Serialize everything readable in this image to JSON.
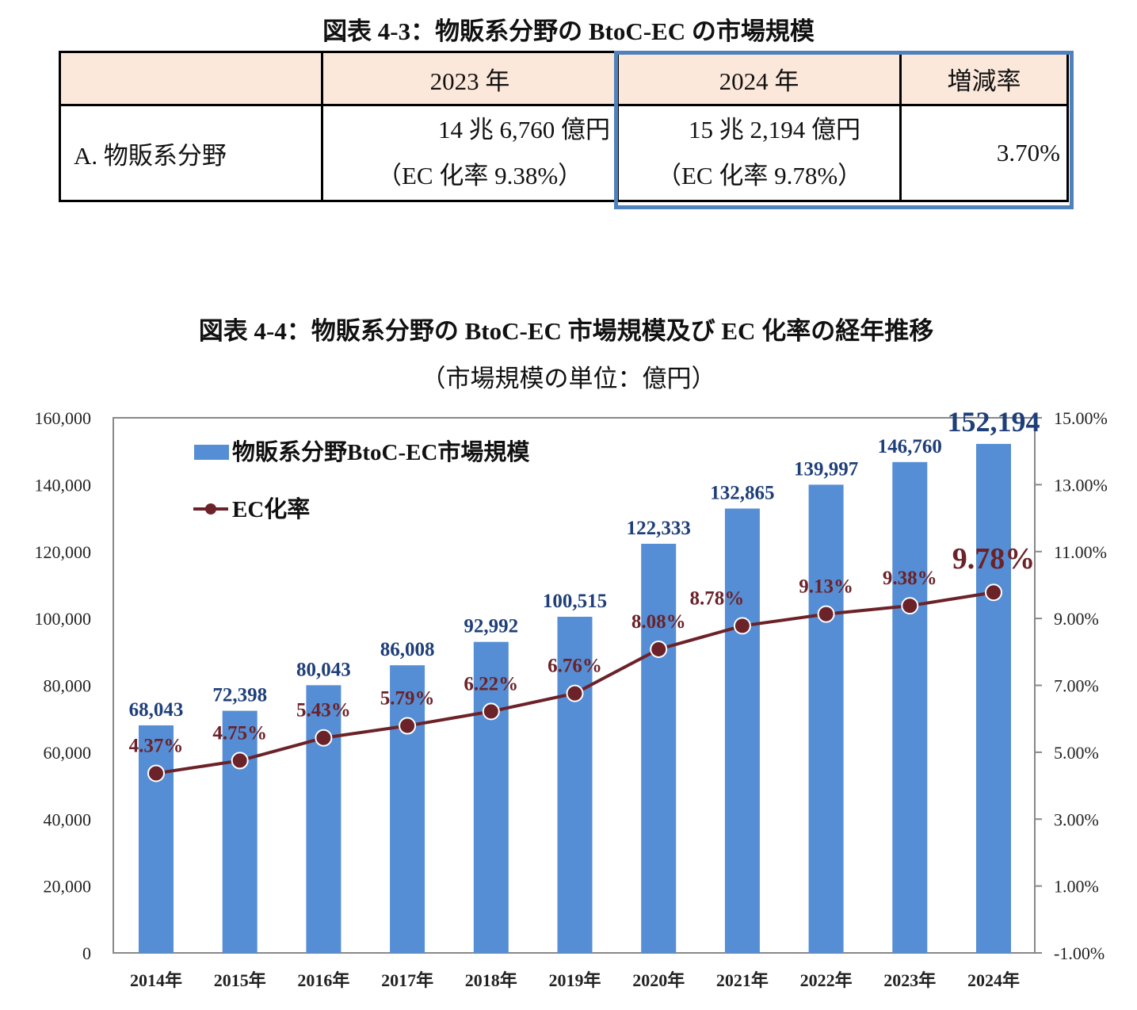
{
  "table_section": {
    "title": "図表 4-3：物販系分野の BtoC-EC の市場規模",
    "headers": [
      "",
      "2023 年",
      "2024 年",
      "増減率"
    ],
    "row": {
      "label": "A. 物販系分野",
      "y2023_value": "14 兆 6,760 億円",
      "y2023_rate": "（EC 化率 9.38%）",
      "y2024_value": "15 兆 2,194 億円",
      "y2024_rate": "（EC 化率 9.78%）",
      "change": "3.70%"
    },
    "highlight_color": "#4f81bd",
    "header_bg": "#fce8da"
  },
  "chart_data": {
    "type": "bar+line",
    "title": "図表 4-4：物販系分野の BtoC-EC 市場規模及び EC 化率の経年推移",
    "subtitle": "（市場規模の単位：億円）",
    "categories": [
      "2014年",
      "2015年",
      "2016年",
      "2017年",
      "2018年",
      "2019年",
      "2020年",
      "2021年",
      "2022年",
      "2023年",
      "2024年"
    ],
    "series": [
      {
        "name": "物販系分野BtoC-EC市場規模",
        "type": "bar",
        "axis": "left",
        "color": "#558ed5",
        "values": [
          68043,
          72398,
          80043,
          86008,
          92992,
          100515,
          122333,
          132865,
          139997,
          146760,
          152194
        ],
        "labels": [
          "68,043",
          "72,398",
          "80,043",
          "86,008",
          "92,992",
          "100,515",
          "122,333",
          "132,865",
          "139,997",
          "146,760",
          "152,194"
        ]
      },
      {
        "name": "EC化率",
        "type": "line",
        "axis": "right",
        "color": "#6b2228",
        "values": [
          4.37,
          4.75,
          5.43,
          5.79,
          6.22,
          6.76,
          8.08,
          8.78,
          9.13,
          9.38,
          9.78
        ],
        "labels": [
          "4.37%",
          "4.75%",
          "5.43%",
          "5.79%",
          "6.22%",
          "6.76%",
          "8.08%",
          "8.78%",
          "9.13%",
          "9.38%",
          "9.78%"
        ]
      }
    ],
    "y_left": {
      "range": [
        0,
        160000
      ],
      "ticks": [
        "0",
        "20,000",
        "40,000",
        "60,000",
        "80,000",
        "100,000",
        "120,000",
        "140,000",
        "160,000"
      ]
    },
    "y_right": {
      "range": [
        -1,
        15
      ],
      "ticks": [
        "-1.00%",
        "1.00%",
        "3.00%",
        "5.00%",
        "7.00%",
        "9.00%",
        "11.00%",
        "13.00%",
        "15.00%"
      ]
    },
    "legend_placement": "top-left",
    "grid": false
  }
}
